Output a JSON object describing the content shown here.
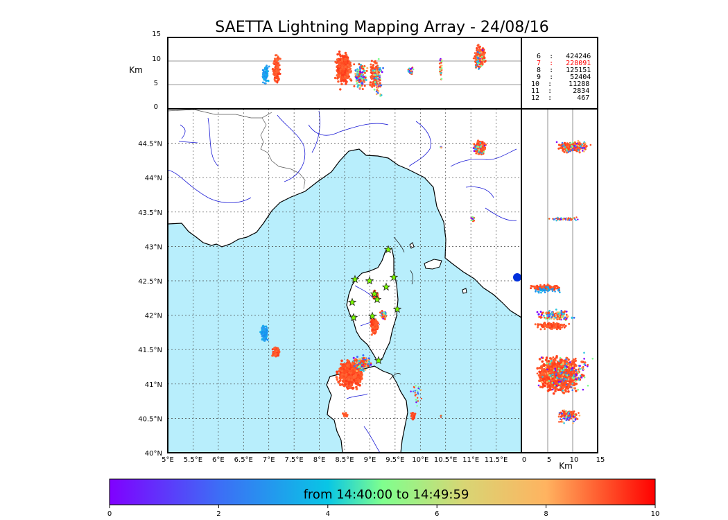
{
  "title": "SAETTA Lightning Mapping Array - 24/08/16",
  "top_panel": {
    "ylabel": "Km",
    "yticks": [
      "0",
      "5",
      "10",
      "15"
    ]
  },
  "side_panel": {
    "xlabel": "Km",
    "xticks": [
      "0",
      "5",
      "10",
      "15"
    ]
  },
  "map": {
    "lon_ticks": [
      "5°E",
      "5.5°E",
      "6°E",
      "6.5°E",
      "7°E",
      "7.5°E",
      "8°E",
      "8.5°E",
      "9°E",
      "9.5°E",
      "10°E",
      "10.5°E",
      "11°E",
      "11.5°E"
    ],
    "lat_ticks": [
      "40°N",
      "40.5°N",
      "41°N",
      "41.5°N",
      "42°N",
      "42.5°N",
      "43°N",
      "43.5°N",
      "44°N",
      "44.5°N"
    ],
    "extent": {
      "lon": [
        5,
        12
      ],
      "lat": [
        40,
        45
      ]
    },
    "station_count": 12,
    "station_color": "#7cfc00"
  },
  "counts": [
    {
      "text": " 6  :   424246",
      "color": "#000000"
    },
    {
      "text": " 7  :   228091",
      "color": "#ff0000"
    },
    {
      "text": " 8  :   125151",
      "color": "#000000"
    },
    {
      "text": " 9  :    52404",
      "color": "#000000"
    },
    {
      "text": "10  :    11288",
      "color": "#000000"
    },
    {
      "text": "11  :     2834",
      "color": "#000000"
    },
    {
      "text": "12  :      467",
      "color": "#000000"
    }
  ],
  "colorbar": {
    "label": "from 14:40:00 to 14:49:59",
    "ticks": [
      "0",
      "2",
      "4",
      "6",
      "8",
      "10"
    ],
    "range": [
      0,
      10
    ],
    "colors": [
      "#8000ff",
      "#0fb0ed",
      "#7fff8e",
      "#ffb360",
      "#ff0000"
    ]
  },
  "colors": {
    "sea": "#b8eefc",
    "river": "#0000cc",
    "border": "#555555",
    "coast": "#000000"
  }
}
